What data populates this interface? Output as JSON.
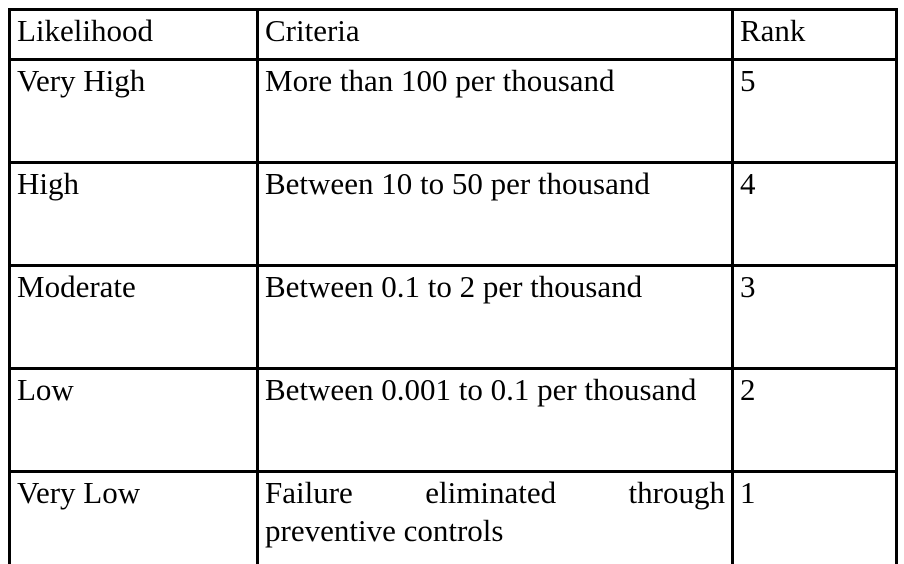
{
  "table": {
    "headers": {
      "likelihood": "Likelihood",
      "criteria": "Criteria",
      "rank": "Rank"
    },
    "rows": [
      {
        "likelihood": "Very High",
        "criteria": "More than 100 per thousand",
        "rank": "5"
      },
      {
        "likelihood": "High",
        "criteria": "Between 10 to 50 per thousand",
        "rank": "4"
      },
      {
        "likelihood": "Moderate",
        "criteria": "Between 0.1 to 2 per thousand",
        "rank": "3"
      },
      {
        "likelihood": "Low",
        "criteria": "Between 0.001 to 0.1 per thousand",
        "rank": "2"
      },
      {
        "likelihood": "Very Low",
        "criteria": "Failure eliminated through preventive controls",
        "rank": "1"
      }
    ]
  }
}
